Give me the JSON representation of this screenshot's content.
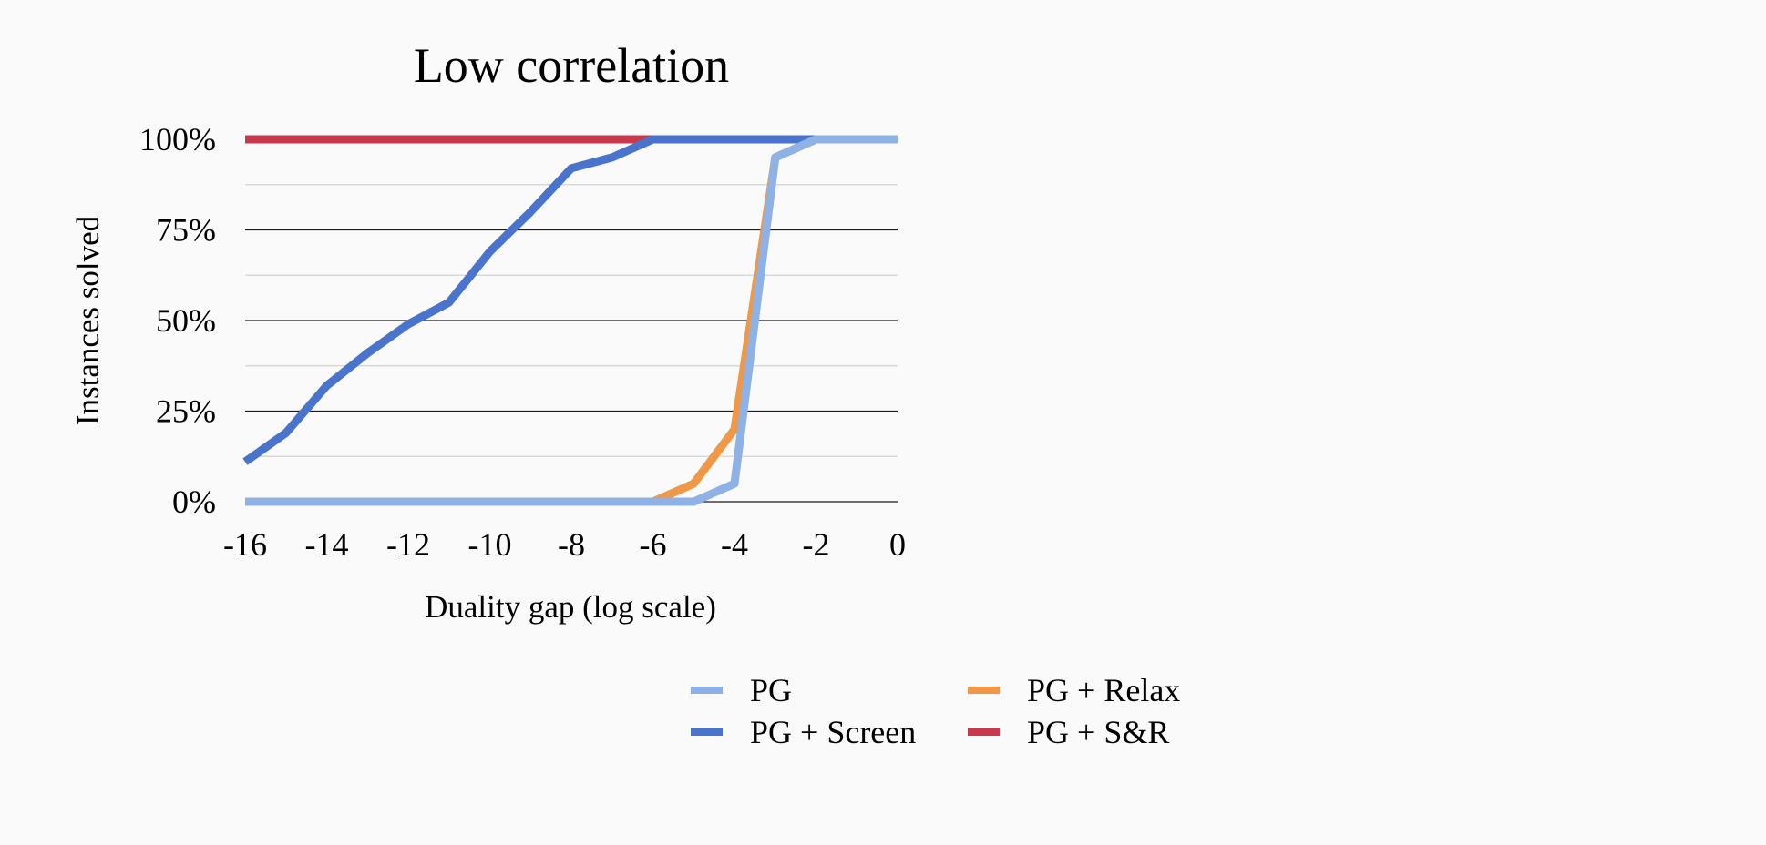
{
  "chart_data": {
    "type": "line",
    "title": "Low correlation",
    "xlabel": "Duality gap (log scale)",
    "ylabel": "Instances solved",
    "xlim": [
      -16,
      0
    ],
    "ylim": [
      0,
      100
    ],
    "x_ticks": [
      -16,
      -14,
      -12,
      -10,
      -8,
      -6,
      -4,
      -2,
      0
    ],
    "x_tick_labels": [
      "-16",
      "-14",
      "-12",
      "-10",
      "-8",
      "-6",
      "-4",
      "-2",
      "0"
    ],
    "y_ticks": [
      0,
      25,
      50,
      75,
      100
    ],
    "y_tick_labels": [
      "0%",
      "25%",
      "50%",
      "75%",
      "100%"
    ],
    "y_minor_gridlines": [
      12.5,
      37.5,
      62.5,
      87.5
    ],
    "grid": true,
    "legend_position": "bottom",
    "series": [
      {
        "name": "PG",
        "color": "#8eb1e6",
        "x": [
          -16,
          -15,
          -14,
          -13,
          -12,
          -11,
          -10,
          -9,
          -8,
          -7,
          -6,
          -5,
          -4,
          -3,
          -2,
          -1,
          0
        ],
        "values": [
          0,
          0,
          0,
          0,
          0,
          0,
          0,
          0,
          0,
          0,
          0,
          0,
          5,
          95,
          100,
          100,
          100
        ]
      },
      {
        "name": "PG + Relax",
        "color": "#ef9847",
        "x": [
          -16,
          -15,
          -14,
          -13,
          -12,
          -11,
          -10,
          -9,
          -8,
          -7,
          -6,
          -5,
          -4,
          -3,
          -2,
          -1,
          0
        ],
        "values": [
          0,
          0,
          0,
          0,
          0,
          0,
          0,
          0,
          0,
          0,
          0,
          5,
          20,
          95,
          100,
          100,
          100
        ]
      },
      {
        "name": "PG + Screen",
        "color": "#4a74cc",
        "x": [
          -16,
          -15,
          -14,
          -13,
          -12,
          -11,
          -10,
          -9,
          -8,
          -7,
          -6,
          -5,
          -4,
          -3,
          -2,
          -1,
          0
        ],
        "values": [
          11,
          19,
          32,
          41,
          49,
          55,
          69,
          80,
          92,
          95,
          100,
          100,
          100,
          100,
          100,
          100,
          100
        ]
      },
      {
        "name": "PG + S&R",
        "color": "#c9394e",
        "x": [
          -16,
          -15,
          -14,
          -13,
          -12,
          -11,
          -10,
          -9,
          -8,
          -7,
          -6,
          -5,
          -4,
          -3,
          -2,
          -1,
          0
        ],
        "values": [
          100,
          100,
          100,
          100,
          100,
          100,
          100,
          100,
          100,
          100,
          100,
          100,
          100,
          100,
          100,
          100,
          100
        ]
      }
    ],
    "draw_order": [
      3,
      2,
      1,
      0
    ],
    "legend_layout": [
      0,
      2,
      1,
      3
    ]
  }
}
